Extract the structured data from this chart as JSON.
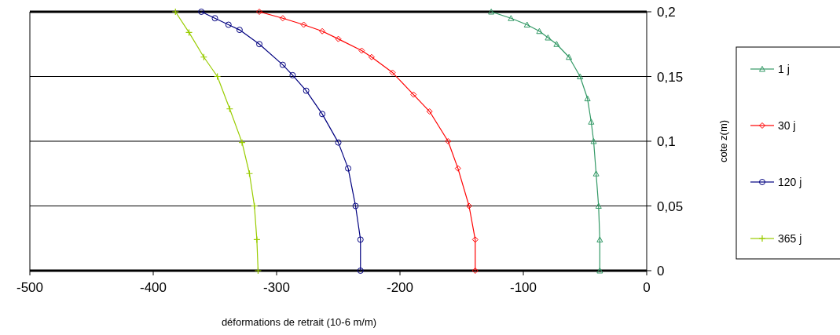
{
  "chart_data": {
    "type": "line",
    "xlabel": "déformations de retrait (10-6 m/m)",
    "ylabel": "cote z(m)",
    "xlim": [
      -500,
      0
    ],
    "xticks": [
      -500,
      -400,
      -300,
      -200,
      -100,
      0
    ],
    "ylim": [
      0,
      0.2
    ],
    "yticks": [
      {
        "value": 0,
        "label": "0"
      },
      {
        "value": 0.05,
        "label": "0,05"
      },
      {
        "value": 0.1,
        "label": "0,1"
      },
      {
        "value": 0.15,
        "label": "0,15"
      },
      {
        "value": 0.2,
        "label": "0,2"
      }
    ],
    "grid": "y",
    "legend": "right",
    "line_style": "solid",
    "series": [
      {
        "name": "1 j",
        "color": "#339966",
        "marker": "triangle",
        "x": [
          -126,
          -110,
          -97,
          -87,
          -80,
          -73,
          -63,
          -54,
          -48,
          -45,
          -43,
          -41,
          -39,
          -38,
          -38
        ],
        "values": [
          0.2,
          0.195,
          0.19,
          0.185,
          0.18,
          0.175,
          0.165,
          0.15,
          0.133,
          0.115,
          0.1,
          0.075,
          0.05,
          0.024,
          0
        ]
      },
      {
        "name": "30 j",
        "color": "#ff0000",
        "marker": "diamond",
        "x": [
          -314,
          -295,
          -278,
          -263,
          -250,
          -231,
          -223,
          -206,
          -189,
          -176,
          -161,
          -153,
          -144,
          -139,
          -139
        ],
        "values": [
          0.2,
          0.195,
          0.19,
          0.185,
          0.179,
          0.17,
          0.165,
          0.153,
          0.136,
          0.123,
          0.1,
          0.079,
          0.05,
          0.024,
          0
        ]
      },
      {
        "name": "120 j",
        "color": "#000080",
        "marker": "circle",
        "x": [
          -361,
          -350,
          -339,
          -330,
          -314,
          -295,
          -287,
          -276,
          -263,
          -250,
          -242,
          -236,
          -232,
          -232
        ],
        "values": [
          0.2,
          0.195,
          0.19,
          0.186,
          0.175,
          0.159,
          0.151,
          0.139,
          0.121,
          0.099,
          0.079,
          0.05,
          0.024,
          0
        ]
      },
      {
        "name": "365 j",
        "color": "#99cc00",
        "marker": "cross",
        "x": [
          -382,
          -371,
          -359,
          -348,
          -338,
          -328,
          -322,
          -318,
          -316,
          -315
        ],
        "values": [
          0.2,
          0.184,
          0.165,
          0.15,
          0.125,
          0.099,
          0.075,
          0.05,
          0.024,
          0
        ]
      }
    ]
  }
}
